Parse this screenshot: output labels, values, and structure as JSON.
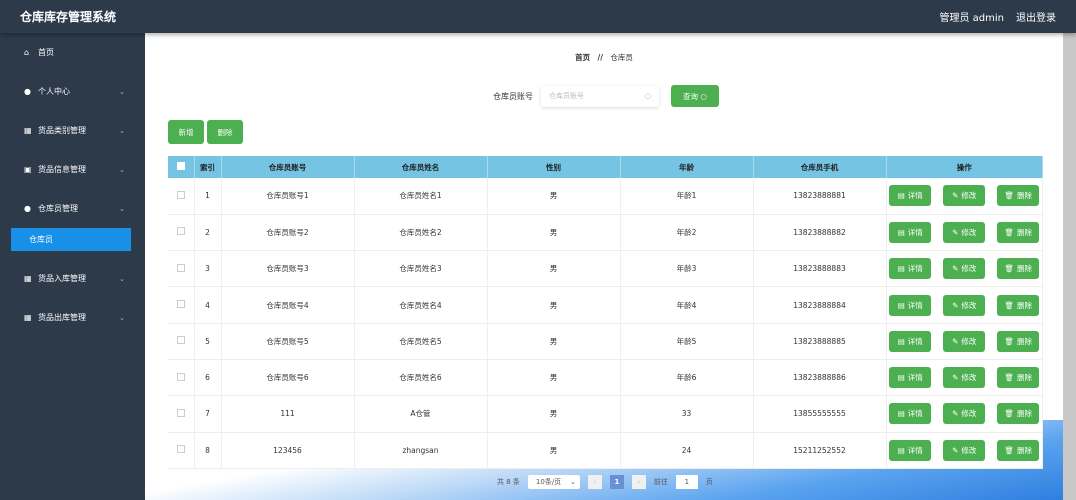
{
  "header": {
    "title": "仓库库存管理系统",
    "user": "管理员 admin",
    "logout": "退出登录"
  },
  "sidebar": {
    "items": [
      {
        "label": "首页",
        "icon": "home-icon",
        "glyph": "⌂",
        "expandable": false
      },
      {
        "label": "个人中心",
        "icon": "user-icon",
        "glyph": "●",
        "expandable": true
      },
      {
        "label": "货品类别管理",
        "icon": "grid-icon",
        "glyph": "▦",
        "expandable": true
      },
      {
        "label": "货品信息管理",
        "icon": "clipboard-icon",
        "glyph": "▣",
        "expandable": true
      },
      {
        "label": "仓库员管理",
        "icon": "user-icon",
        "glyph": "●",
        "expandable": true
      }
    ],
    "active_sub": "仓库员",
    "items_after": [
      {
        "label": "货品入库管理",
        "icon": "grid-icon",
        "glyph": "▦"
      },
      {
        "label": "货品出库管理",
        "icon": "grid-icon",
        "glyph": "▦"
      }
    ]
  },
  "breadcrumb": {
    "home": "首页",
    "sep": "//",
    "current": "仓库员"
  },
  "search": {
    "label": "仓库员账号",
    "placeholder": "仓库员账号",
    "button": "查询"
  },
  "actions": {
    "add": "新增",
    "delete": "删除"
  },
  "table": {
    "columns": [
      "索引",
      "仓库员账号",
      "仓库员姓名",
      "性别",
      "年龄",
      "仓库员手机",
      "操作"
    ],
    "rows": [
      [
        "1",
        "仓库员账号1",
        "仓库员姓名1",
        "男",
        "年龄1",
        "13823888881"
      ],
      [
        "2",
        "仓库员账号2",
        "仓库员姓名2",
        "男",
        "年龄2",
        "13823888882"
      ],
      [
        "3",
        "仓库员账号3",
        "仓库员姓名3",
        "男",
        "年龄3",
        "13823888883"
      ],
      [
        "4",
        "仓库员账号4",
        "仓库员姓名4",
        "男",
        "年龄4",
        "13823888884"
      ],
      [
        "5",
        "仓库员账号5",
        "仓库员姓名5",
        "男",
        "年龄5",
        "13823888885"
      ],
      [
        "6",
        "仓库员账号6",
        "仓库员姓名6",
        "男",
        "年龄6",
        "13823888886"
      ],
      [
        "7",
        "111",
        "A仓管",
        "男",
        "33",
        "13855555555"
      ],
      [
        "8",
        "123456",
        "zhangsan",
        "男",
        "24",
        "15211252552"
      ]
    ],
    "row_actions": {
      "detail": "详情",
      "edit": "修改",
      "delete": "删除"
    }
  },
  "pagination": {
    "total": "共 8 条",
    "page_size": "10条/页",
    "current": "1",
    "goto_label": "前往",
    "goto_value": "1",
    "page_unit": "页"
  },
  "colors": {
    "header_bg": "#2c3a4a",
    "accent": "#4caf50",
    "table_header": "#75c4e4",
    "active_menu": "#1890e8"
  }
}
